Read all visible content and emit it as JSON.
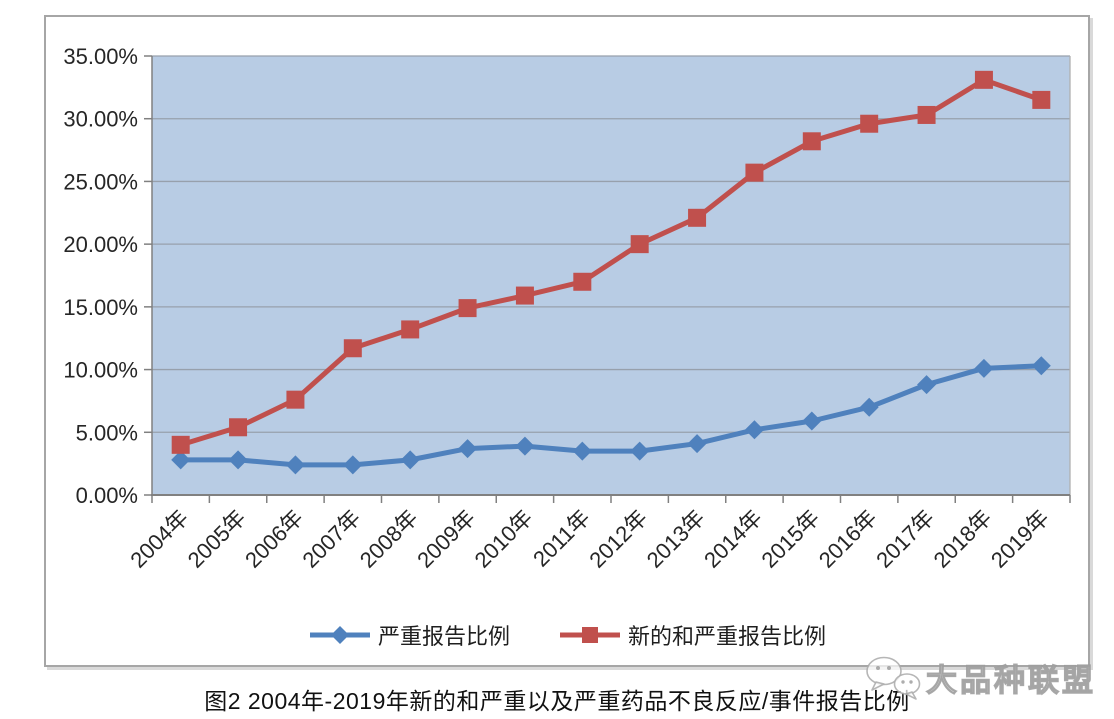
{
  "chart_data": {
    "type": "line",
    "title": "图2 2004年-2019年新的和严重以及严重药品不良反应/事件报告比例",
    "categories": [
      "2004年",
      "2005年",
      "2006年",
      "2007年",
      "2008年",
      "2009年",
      "2010年",
      "2011年",
      "2012年",
      "2013年",
      "2014年",
      "2015年",
      "2016年",
      "2017年",
      "2018年",
      "2019年"
    ],
    "series": [
      {
        "name": "严重报告比例",
        "marker": "diamond",
        "color": "#4F81BD",
        "values": [
          2.8,
          2.8,
          2.4,
          2.4,
          2.8,
          3.7,
          3.9,
          3.5,
          3.5,
          4.1,
          5.2,
          5.9,
          7.0,
          8.8,
          10.1,
          10.3
        ]
      },
      {
        "name": "新的和严重报告比例",
        "marker": "square",
        "color": "#C0504D",
        "values": [
          4.0,
          5.4,
          7.6,
          11.7,
          13.2,
          14.9,
          15.9,
          17.0,
          20.0,
          22.1,
          25.7,
          28.2,
          29.6,
          30.3,
          33.1,
          31.5
        ]
      }
    ],
    "y_ticks": [
      "0.00%",
      "5.00%",
      "10.00%",
      "15.00%",
      "20.00%",
      "25.00%",
      "30.00%",
      "35.00%"
    ],
    "ylim": [
      0,
      35
    ],
    "grid": true,
    "legend_position": "bottom",
    "plot_bg": "#b8cce4",
    "grid_color": "#97a0ac",
    "axis_color": "#808080",
    "tick_label_color": "#262626"
  },
  "caption": "图2 2004年-2019年新的和严重以及严重药品不良反应/事件报告比例",
  "watermark": {
    "text": "大品种联盟",
    "icon": "wechat-logo-icon"
  }
}
